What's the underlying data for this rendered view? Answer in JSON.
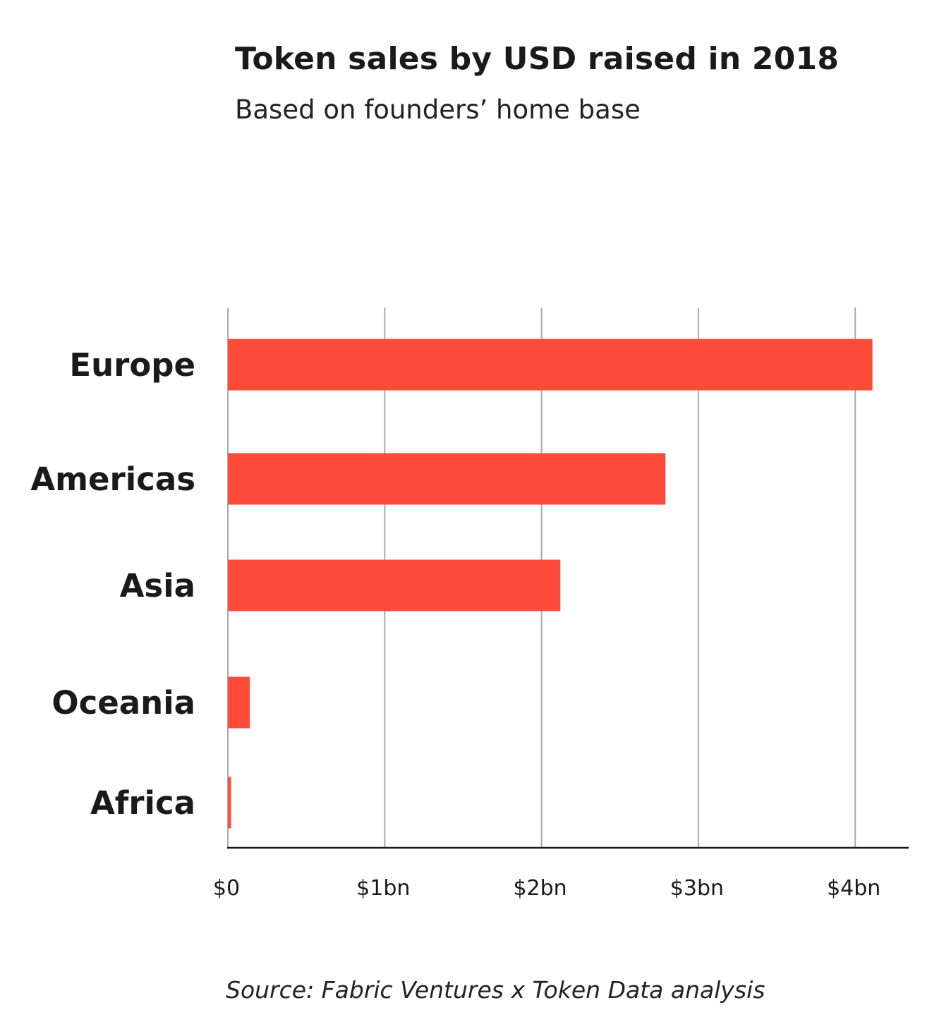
{
  "colors": {
    "bar": "#FF4B3A",
    "grid": "#AAAAAA",
    "axis": "#1A1A1A",
    "text": "#1A1A1A"
  },
  "chart_data": {
    "type": "bar",
    "orientation": "horizontal",
    "title": "Token sales by USD raised in 2018",
    "subtitle": "Based on founders’ home base",
    "source": "Source: Fabric Ventures x Token Data analysis",
    "categories": [
      "Europe",
      "Americas",
      "Asia",
      "Oceania",
      "Africa"
    ],
    "values": [
      4.11,
      2.79,
      2.12,
      0.14,
      0.02
    ],
    "unit": "USD billions",
    "xlim": [
      0,
      4.3
    ],
    "x_ticks": [
      0,
      1,
      2,
      3,
      4
    ],
    "x_tick_labels": [
      "$0",
      "$1bn",
      "$2bn",
      "$3bn",
      "$4bn"
    ],
    "grid": "vertical",
    "legend": "none"
  }
}
